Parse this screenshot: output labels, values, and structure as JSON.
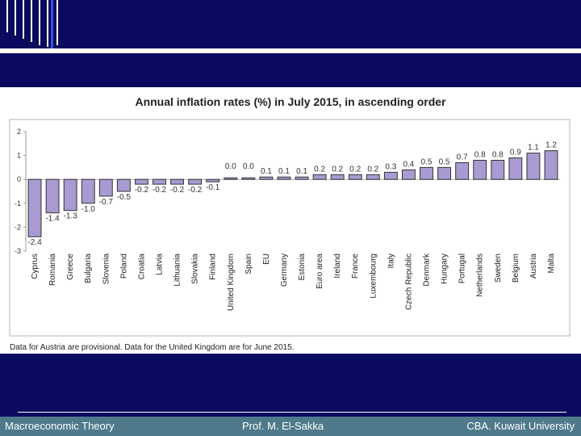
{
  "chart_data": {
    "type": "bar",
    "title": "Annual inflation rates (%) in July 2015, in ascending order",
    "xlabel": "",
    "ylabel": "",
    "ylim": [
      -3,
      2
    ],
    "yticks": [
      2,
      1,
      0,
      -1,
      -2,
      -3
    ],
    "grid": false,
    "bar_color": "#a99ad2",
    "categories": [
      "Cyprus",
      "Romania",
      "Greece",
      "Bulgaria",
      "Slovenia",
      "Poland",
      "Croatia",
      "Latvia",
      "Lithuania",
      "Slovakia",
      "Finland",
      "United Kingdom",
      "Spain",
      "EU",
      "Germany",
      "Estonia",
      "Euro area",
      "Ireland",
      "France",
      "Luxembourg",
      "Italy",
      "Czech Republic",
      "Denmark",
      "Hungary",
      "Portugal",
      "Netherlands",
      "Sweden",
      "Belgium",
      "Austria",
      "Malta"
    ],
    "values": [
      -2.4,
      -1.4,
      -1.3,
      -1.0,
      -0.7,
      -0.5,
      -0.2,
      -0.2,
      -0.2,
      -0.2,
      -0.1,
      0.0,
      0.0,
      0.1,
      0.1,
      0.1,
      0.2,
      0.2,
      0.2,
      0.2,
      0.3,
      0.4,
      0.5,
      0.5,
      0.7,
      0.8,
      0.8,
      0.9,
      1.1,
      1.2
    ],
    "value_labels": [
      "-2.4",
      "-1.4",
      "-1.3",
      "-1.0",
      "-0.7",
      "-0.5",
      "-0.2",
      "-0.2",
      "-0.2",
      "-0.2",
      "-0.1",
      "0.0",
      "0.0",
      "0.1",
      "0.1",
      "0.1",
      "0.2",
      "0.2",
      "0.2",
      "0.2",
      "0.3",
      "0.4",
      "0.5",
      "0.5",
      "0.7",
      "0.8",
      "0.8",
      "0.9",
      "1.1",
      "1.2"
    ],
    "note": "Data for Austria are provisional. Data for the United Kingdom are for June 2015."
  },
  "footer": {
    "left": "Macroeconomic Theory",
    "center": "Prof. M. El-Sakka",
    "right": "CBA. Kuwait University"
  },
  "colors": {
    "background": "#0a0a5e",
    "footer_bar": "#4f7a8c",
    "stripe": "#ffffff",
    "accent_stripe": "#3355dd"
  }
}
